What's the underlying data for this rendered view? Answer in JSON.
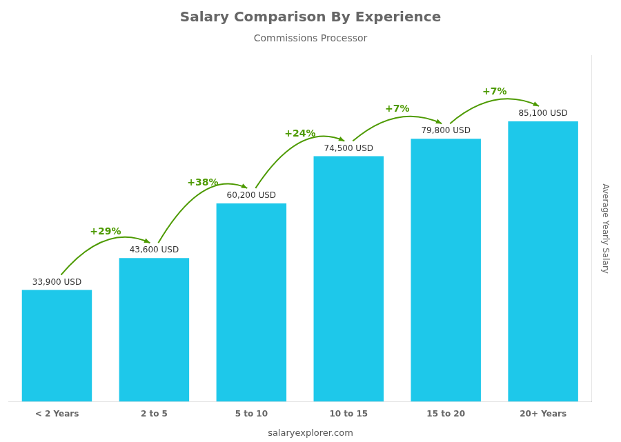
{
  "chart_data": {
    "type": "bar",
    "title": "Salary Comparison By Experience",
    "subtitle": "Commissions Processor",
    "ylabel": "Average Yearly Salary",
    "categories": [
      "< 2 Years",
      "2 to 5",
      "5 to 10",
      "10 to 15",
      "15 to 20",
      "20+ Years"
    ],
    "values": [
      33900,
      43600,
      60200,
      74500,
      79800,
      85100
    ],
    "value_labels": [
      "33,900 USD",
      "43,600 USD",
      "60,200 USD",
      "74,500 USD",
      "79,800 USD",
      "85,100 USD"
    ],
    "data_labels": true,
    "annotations": [
      "+29%",
      "+38%",
      "+24%",
      "+7%",
      "+7%"
    ],
    "footer": "salaryexplorer.com",
    "color": "#1EC8EA",
    "ylim": [
      0,
      105000
    ],
    "grid": false,
    "tick_labels": "x"
  }
}
